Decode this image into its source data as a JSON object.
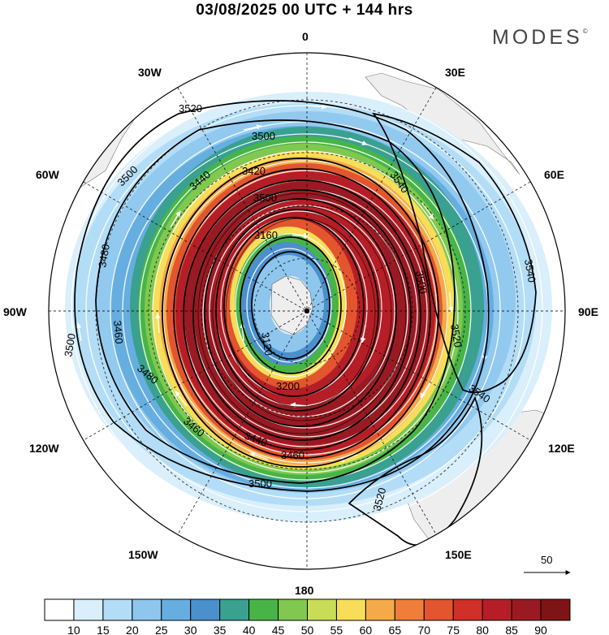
{
  "title": "03/08/2025  00 UTC  + 144 hrs",
  "brand": {
    "name": "MODES",
    "mark": "©"
  },
  "map_labels": {
    "top": "0",
    "bottom": "180",
    "left": "90W",
    "right": "90E",
    "lon_30w": "30W",
    "lon_30e": "30E",
    "lon_60w": "60W",
    "lon_60e": "60E",
    "lon_120w": "120W",
    "lon_120e": "120E",
    "lon_150w": "150W",
    "lon_150e": "150E"
  },
  "contours": [
    {
      "label": "3520"
    },
    {
      "label": "3500"
    },
    {
      "label": "3540"
    },
    {
      "label": "3500"
    },
    {
      "label": "3440"
    },
    {
      "label": "3420"
    },
    {
      "label": "3500"
    },
    {
      "label": "3160"
    },
    {
      "label": "3480"
    },
    {
      "label": "3500"
    },
    {
      "label": "3460"
    },
    {
      "label": "3540"
    },
    {
      "label": "3500"
    },
    {
      "label": "3520"
    },
    {
      "label": "3540"
    },
    {
      "label": "3480"
    },
    {
      "label": "3460"
    },
    {
      "label": "3440"
    },
    {
      "label": "3500"
    },
    {
      "label": "3520"
    },
    {
      "label": "3120"
    },
    {
      "label": "3200"
    },
    {
      "label": "3460"
    }
  ],
  "vector_reference": {
    "label": "50"
  },
  "colorbar": {
    "ticks": [
      "10",
      "15",
      "20",
      "25",
      "30",
      "35",
      "40",
      "45",
      "50",
      "55",
      "60",
      "65",
      "70",
      "75",
      "80",
      "85",
      "90"
    ],
    "colors": [
      "#ffffff",
      "#d9effb",
      "#b3ddf6",
      "#8ec6ee",
      "#66aee0",
      "#4a90cc",
      "#3aa090",
      "#48b448",
      "#80c850",
      "#c8dc58",
      "#f8de58",
      "#f4aa48",
      "#ee7e3a",
      "#e2552f",
      "#d03028",
      "#b51e26",
      "#991a22",
      "#7e1416"
    ]
  }
}
